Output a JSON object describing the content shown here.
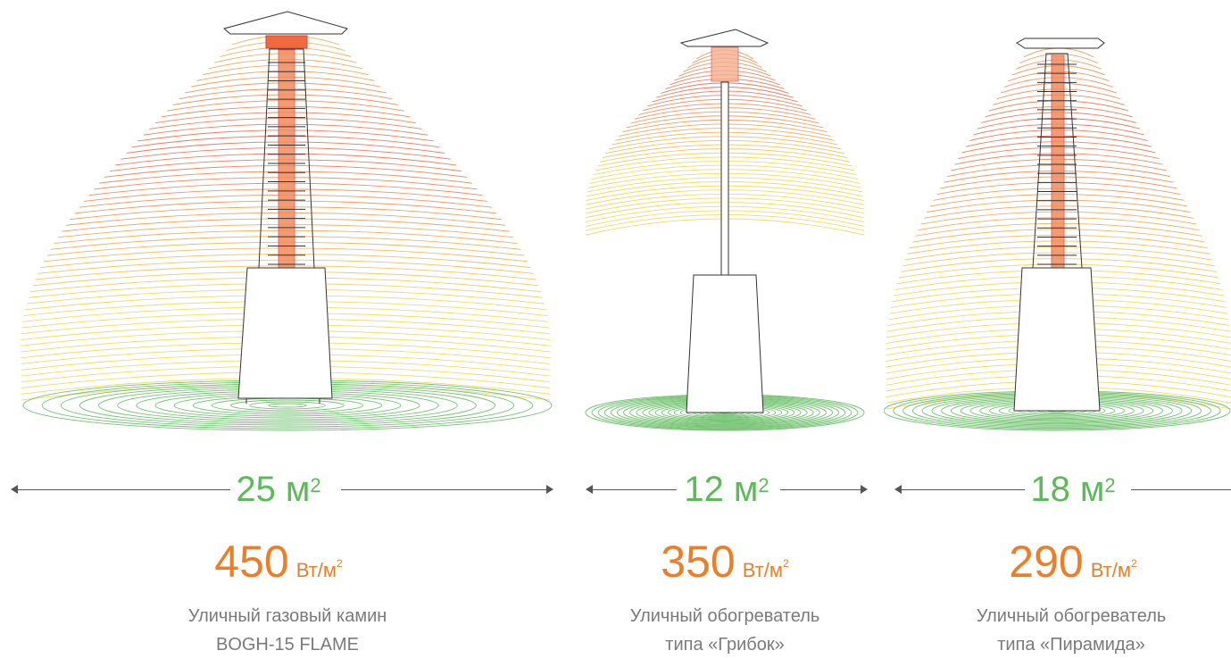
{
  "colors": {
    "green": "#5cba59",
    "orange": "#ee7d28",
    "heat_warm": "#f6d24c",
    "heat_hot": "#e8493b",
    "text_gray": "#7a7a7a"
  },
  "heaters": [
    {
      "area_value": "25 м",
      "area_sup": "2",
      "power_value": "450",
      "power_unit": "Вт/м",
      "power_sup": "2",
      "desc_line1": "Уличный газовый камин",
      "desc_line2": "BOGH-15 FLAME"
    },
    {
      "area_value": "12 м",
      "area_sup": "2",
      "power_value": "350",
      "power_unit": "Вт/м",
      "power_sup": "2",
      "desc_line1": "Уличный обогреватель",
      "desc_line2": "типа «Грибок»"
    },
    {
      "area_value": "18 м",
      "area_sup": "2",
      "power_value": "290",
      "power_unit": "Вт/м",
      "power_sup": "2",
      "desc_line1": "Уличный обогреватель",
      "desc_line2": "типа «Пирамида»"
    }
  ]
}
